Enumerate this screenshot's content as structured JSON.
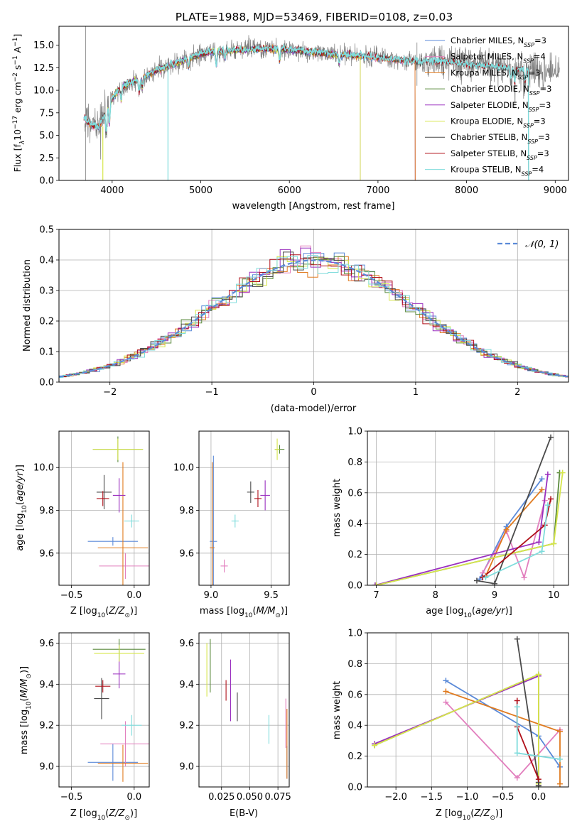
{
  "figure_title": "PLATE=1988, MJD=53469, FIBERID=0108, z=0.03",
  "colors": {
    "Chabrier MILES": "#5b8ad8",
    "Salpeter MILES": "#e27fbe",
    "Kroupa MILES": "#e07a1e",
    "Chabrier ELODIE": "#5a8a3c",
    "Salpeter ELODIE": "#9a2fbf",
    "Kroupa ELODIE": "#d6e64a",
    "Chabrier STELIB": "#4a4a4a",
    "Salpeter STELIB": "#b0101a",
    "Kroupa STELIB": "#7fdcdc",
    "data": "#808080",
    "normal": "#5b8ad8"
  },
  "chart_data": [
    {
      "id": "spectrum",
      "type": "line",
      "title": "PLATE=1988, MJD=53469, FIBERID=0108, z=0.03",
      "xlabel": "wavelength [Angstrom, rest frame]",
      "ylabel_parts": [
        "Flux [f",
        "λ",
        "10",
        "−17",
        " erg cm",
        "−2",
        " s",
        "−1",
        " A",
        "−1",
        "]"
      ],
      "xlim": [
        3400,
        9150
      ],
      "ylim": [
        0,
        17.1
      ],
      "xticks": [
        4000,
        5000,
        6000,
        7000,
        8000,
        9000
      ],
      "yticks": [
        0.0,
        2.5,
        5.0,
        7.5,
        10.0,
        12.5,
        15.0
      ],
      "grid": false,
      "legend_position": "right",
      "legend": [
        {
          "name": "Chabrier MILES",
          "nssp": "3"
        },
        {
          "name": "Salpeter MILES",
          "nssp": "4"
        },
        {
          "name": "Kroupa MILES",
          "nssp": "3"
        },
        {
          "name": "Chabrier ELODIE",
          "nssp": "3"
        },
        {
          "name": "Salpeter ELODIE",
          "nssp": "3"
        },
        {
          "name": "Kroupa ELODIE",
          "nssp": "3"
        },
        {
          "name": "Chabrier STELIB",
          "nssp": "3"
        },
        {
          "name": "Salpeter STELIB",
          "nssp": "3"
        },
        {
          "name": "Kroupa STELIB",
          "nssp": "4"
        }
      ],
      "continuum": {
        "x": [
          3680,
          3750,
          3850,
          3950,
          4050,
          4150,
          4300,
          4500,
          4700,
          4900,
          5100,
          5300,
          5500,
          5700,
          5900,
          6100,
          6300,
          6500,
          6700,
          6900,
          7100,
          7300,
          7500,
          7700,
          7900,
          8100,
          8300,
          8500,
          8700,
          8900,
          9050
        ],
        "y": [
          7.0,
          6.2,
          5.9,
          8.2,
          9.8,
          10.6,
          11.2,
          12.2,
          12.9,
          13.7,
          14.3,
          14.4,
          14.5,
          14.6,
          14.6,
          14.4,
          14.2,
          14.0,
          13.9,
          13.7,
          13.5,
          13.3,
          13.1,
          13.2,
          13.0,
          12.7,
          12.6,
          12.4,
          12.2,
          12.1,
          12.0
        ]
      },
      "model_ranges": {
        "Chabrier MILES": [
          3680,
          7420
        ],
        "Salpeter MILES": [
          3680,
          7420
        ],
        "Kroupa MILES": [
          3680,
          7420
        ],
        "Chabrier ELODIE": [
          3890,
          6800
        ],
        "Salpeter ELODIE": [
          3890,
          6800
        ],
        "Kroupa ELODIE": [
          3890,
          6800
        ],
        "Chabrier STELIB": [
          3680,
          8700
        ],
        "Salpeter STELIB": [
          3680,
          8700
        ],
        "Kroupa STELIB": [
          3680,
          8700
        ]
      }
    },
    {
      "id": "residuals",
      "type": "histogram",
      "xlabel": "(data-model)/error",
      "ylabel": "Normed distribution",
      "xlim": [
        -2.5,
        2.5
      ],
      "ylim": [
        0,
        0.5
      ],
      "xticks": [
        -2,
        -1,
        0,
        1,
        2
      ],
      "yticks": [
        0.0,
        0.1,
        0.2,
        0.3,
        0.4,
        0.5
      ],
      "grid": true,
      "legend_position": "upper right",
      "normal_label": "𝒩(0, 1)",
      "bin_width": 0.1
    },
    {
      "id": "age_vs_Z",
      "type": "errorbar",
      "xlabel": "Z [log10(Z/Z⊙)]",
      "ylabel": "age  [log10(age/yr)]",
      "xlim": [
        -0.6,
        0.12
      ],
      "ylim": [
        9.45,
        10.17
      ],
      "xticks": [
        -0.5,
        0.0
      ],
      "yticks": [
        9.6,
        9.8,
        10.0
      ],
      "grid": true,
      "points": [
        {
          "model": "Chabrier MILES",
          "x": -0.17,
          "xerr": 0.2,
          "y": 9.655,
          "yerr": 0.02
        },
        {
          "model": "Salpeter MILES",
          "x": -0.07,
          "xerr": 0.21,
          "y": 9.54,
          "yerr": 0.06
        },
        {
          "model": "Kroupa MILES",
          "x": -0.09,
          "xerr": 0.2,
          "y": 9.625,
          "yerr": 0.4
        },
        {
          "model": "Chabrier ELODIE",
          "x": -0.13,
          "xerr": 0.2,
          "y": 10.085,
          "yerr": 0.06
        },
        {
          "model": "Salpeter ELODIE",
          "x": -0.12,
          "xerr": 0.05,
          "y": 9.87,
          "yerr": 0.08
        },
        {
          "model": "Kroupa ELODIE",
          "x": -0.13,
          "xerr": 0.2,
          "y": 10.085,
          "yerr": 0.05
        },
        {
          "model": "Chabrier STELIB",
          "x": -0.24,
          "xerr": 0.06,
          "y": 9.885,
          "yerr": 0.08
        },
        {
          "model": "Salpeter STELIB",
          "x": -0.25,
          "xerr": 0.05,
          "y": 9.855,
          "yerr": 0.035
        },
        {
          "model": "Kroupa STELIB",
          "x": -0.02,
          "xerr": 0.06,
          "y": 9.75,
          "yerr": 0.03
        }
      ]
    },
    {
      "id": "age_vs_mass",
      "type": "errorbar",
      "xlabel": "mass [log10(M/M⊙)]",
      "ylabel": "",
      "xlim": [
        8.9,
        9.65
      ],
      "ylim": [
        9.45,
        10.17
      ],
      "xticks": [
        9.0,
        9.5
      ],
      "yticks": [
        9.6,
        9.8,
        10.0
      ],
      "grid": true,
      "points": [
        {
          "model": "Chabrier MILES",
          "x": 9.02,
          "xerr": 0.03,
          "y": 9.655,
          "yerr": 0.4
        },
        {
          "model": "Salpeter MILES",
          "x": 9.11,
          "xerr": 0.03,
          "y": 9.54,
          "yerr": 0.03
        },
        {
          "model": "Kroupa MILES",
          "x": 9.01,
          "xerr": 0.02,
          "y": 9.625,
          "yerr": 0.4
        },
        {
          "model": "Chabrier ELODIE",
          "x": 9.57,
          "xerr": 0.04,
          "y": 10.085,
          "yerr": 0.02
        },
        {
          "model": "Salpeter ELODIE",
          "x": 9.45,
          "xerr": 0.04,
          "y": 9.87,
          "yerr": 0.07
        },
        {
          "model": "Kroupa ELODIE",
          "x": 9.55,
          "xerr": 0.02,
          "y": 10.085,
          "yerr": 0.05
        },
        {
          "model": "Chabrier STELIB",
          "x": 9.33,
          "xerr": 0.03,
          "y": 9.885,
          "yerr": 0.05
        },
        {
          "model": "Salpeter STELIB",
          "x": 9.39,
          "xerr": 0.03,
          "y": 9.855,
          "yerr": 0.04
        },
        {
          "model": "Kroupa STELIB",
          "x": 9.2,
          "xerr": 0.03,
          "y": 9.75,
          "yerr": 0.03
        }
      ]
    },
    {
      "id": "mass_weight_vs_age",
      "type": "line",
      "xlabel": "age  [log10(age/yr)]",
      "ylabel": "mass weight",
      "xlim": [
        6.85,
        10.25
      ],
      "ylim": [
        0,
        1.0
      ],
      "xticks": [
        7,
        8,
        9,
        10
      ],
      "yticks": [
        0.0,
        0.2,
        0.4,
        0.6,
        0.8,
        1.0
      ],
      "grid": true,
      "series": [
        {
          "model": "Chabrier MILES",
          "x": [
            8.75,
            9.2,
            9.8
          ],
          "y": [
            0.04,
            0.38,
            0.69
          ]
        },
        {
          "model": "Salpeter MILES",
          "x": [
            8.8,
            9.2,
            9.5,
            9.85
          ],
          "y": [
            0.08,
            0.35,
            0.05,
            0.55
          ]
        },
        {
          "model": "Kroupa MILES",
          "x": [
            8.85,
            9.2,
            9.8
          ],
          "y": [
            0.06,
            0.36,
            0.62
          ]
        },
        {
          "model": "Chabrier ELODIE",
          "x": [
            7.0,
            10.0,
            10.1
          ],
          "y": [
            0.0,
            0.27,
            0.73
          ]
        },
        {
          "model": "Salpeter ELODIE",
          "x": [
            6.98,
            9.75,
            9.9
          ],
          "y": [
            0.0,
            0.28,
            0.72
          ]
        },
        {
          "model": "Kroupa ELODIE",
          "x": [
            7.0,
            10.0,
            10.15
          ],
          "y": [
            0.0,
            0.27,
            0.73
          ]
        },
        {
          "model": "Chabrier STELIB",
          "x": [
            8.7,
            9.0,
            9.95
          ],
          "y": [
            0.03,
            0.01,
            0.96
          ]
        },
        {
          "model": "Salpeter STELIB",
          "x": [
            8.8,
            9.85,
            9.95
          ],
          "y": [
            0.05,
            0.39,
            0.56
          ]
        },
        {
          "model": "Kroupa STELIB",
          "x": [
            8.85,
            9.8,
            9.9
          ],
          "y": [
            0.05,
            0.22,
            0.52
          ]
        }
      ]
    },
    {
      "id": "mass_vs_Z",
      "type": "errorbar",
      "xlabel": "Z [log10(Z/Z⊙)]",
      "ylabel": "mass [log10(M/M⊙)]",
      "xlim": [
        -0.6,
        0.12
      ],
      "ylim": [
        8.9,
        9.65
      ],
      "xticks": [
        -0.5,
        0.0
      ],
      "yticks": [
        9.0,
        9.2,
        9.4,
        9.6
      ],
      "grid": true,
      "points": [
        {
          "model": "Chabrier MILES",
          "x": -0.17,
          "xerr": 0.2,
          "y": 9.02,
          "yerr": 0.09
        },
        {
          "model": "Salpeter MILES",
          "x": -0.07,
          "xerr": 0.2,
          "y": 9.11,
          "yerr": 0.11
        },
        {
          "model": "Kroupa MILES",
          "x": -0.09,
          "xerr": 0.2,
          "y": 9.015,
          "yerr": 0.09
        },
        {
          "model": "Chabrier ELODIE",
          "x": -0.12,
          "xerr": 0.21,
          "y": 9.57,
          "yerr": 0.05
        },
        {
          "model": "Salpeter ELODIE",
          "x": -0.12,
          "xerr": 0.05,
          "y": 9.45,
          "yerr": 0.07
        },
        {
          "model": "Kroupa ELODIE",
          "x": -0.12,
          "xerr": 0.2,
          "y": 9.55,
          "yerr": 0.04
        },
        {
          "model": "Chabrier STELIB",
          "x": -0.26,
          "xerr": 0.06,
          "y": 9.33,
          "yerr": 0.1
        },
        {
          "model": "Salpeter STELIB",
          "x": -0.25,
          "xerr": 0.06,
          "y": 9.39,
          "yerr": 0.03
        },
        {
          "model": "Kroupa STELIB",
          "x": -0.02,
          "xerr": 0.08,
          "y": 9.2,
          "yerr": 0.05
        }
      ]
    },
    {
      "id": "mass_vs_ebv",
      "type": "errorbar",
      "xlabel": "E(B-V)",
      "ylabel": "",
      "xlim": [
        0.005,
        0.085
      ],
      "ylim": [
        8.9,
        9.65
      ],
      "xticks": [
        0.025,
        0.05,
        0.075
      ],
      "xtick_labels": [
        "0.025",
        "0.050",
        "0.075"
      ],
      "yticks": [
        9.0,
        9.2,
        9.4,
        9.6
      ],
      "grid": true,
      "points": [
        {
          "model": "Chabrier MILES",
          "x": 0.083,
          "xerr": 0,
          "y": 9.02,
          "yerr": 0.08
        },
        {
          "model": "Salpeter MILES",
          "x": 0.082,
          "xerr": 0,
          "y": 9.21,
          "yerr": 0.12
        },
        {
          "model": "Kroupa MILES",
          "x": 0.083,
          "xerr": 0,
          "y": 9.11,
          "yerr": 0.17
        },
        {
          "model": "Chabrier ELODIE",
          "x": 0.015,
          "xerr": 0,
          "y": 9.49,
          "yerr": 0.13
        },
        {
          "model": "Salpeter ELODIE",
          "x": 0.033,
          "xerr": 0,
          "y": 9.37,
          "yerr": 0.15
        },
        {
          "model": "Kroupa ELODIE",
          "x": 0.012,
          "xerr": 0,
          "y": 9.47,
          "yerr": 0.13
        },
        {
          "model": "Chabrier STELIB",
          "x": 0.039,
          "xerr": 0,
          "y": 9.29,
          "yerr": 0.07
        },
        {
          "model": "Salpeter STELIB",
          "x": 0.029,
          "xerr": 0,
          "y": 9.37,
          "yerr": 0.05
        },
        {
          "model": "Kroupa STELIB",
          "x": 0.067,
          "xerr": 0,
          "y": 9.18,
          "yerr": 0.07
        }
      ]
    },
    {
      "id": "mass_weight_vs_Z",
      "type": "line",
      "xlabel": "Z [log10(Z/Z⊙)]",
      "ylabel": "mass weight",
      "xlim": [
        -2.4,
        0.42
      ],
      "ylim": [
        0,
        1.0
      ],
      "xticks": [
        -2.0,
        -1.5,
        -1.0,
        -0.5,
        0.0
      ],
      "yticks": [
        0.0,
        0.2,
        0.4,
        0.6,
        0.8,
        1.0
      ],
      "grid": true,
      "series": [
        {
          "model": "Chabrier MILES",
          "x": [
            -1.3,
            0.0,
            0.3
          ],
          "y": [
            0.69,
            0.33,
            0.13
          ]
        },
        {
          "model": "Salpeter MILES",
          "x": [
            -1.3,
            -0.3,
            0.3
          ],
          "y": [
            0.55,
            0.06,
            0.37
          ]
        },
        {
          "model": "Kroupa MILES",
          "x": [
            -1.3,
            0.3,
            0.3
          ],
          "y": [
            0.62,
            0.36,
            0.02
          ]
        },
        {
          "model": "Chabrier ELODIE",
          "x": [
            -2.3,
            0.0,
            0.0
          ],
          "y": [
            0.27,
            0.73,
            0.0
          ]
        },
        {
          "model": "Salpeter ELODIE",
          "x": [
            -2.3,
            0.0,
            0.0
          ],
          "y": [
            0.28,
            0.72,
            0.01
          ]
        },
        {
          "model": "Kroupa ELODIE",
          "x": [
            -2.3,
            0.0,
            0.0
          ],
          "y": [
            0.27,
            0.73,
            0.02
          ]
        },
        {
          "model": "Chabrier STELIB",
          "x": [
            -0.3,
            0.0,
            0.0
          ],
          "y": [
            0.96,
            0.03,
            0.01
          ]
        },
        {
          "model": "Salpeter STELIB",
          "x": [
            -0.3,
            -0.3,
            0.0
          ],
          "y": [
            0.56,
            0.39,
            0.05
          ]
        },
        {
          "model": "Kroupa STELIB",
          "x": [
            -0.3,
            -0.3,
            0.3
          ],
          "y": [
            0.52,
            0.22,
            0.18
          ]
        }
      ]
    }
  ]
}
